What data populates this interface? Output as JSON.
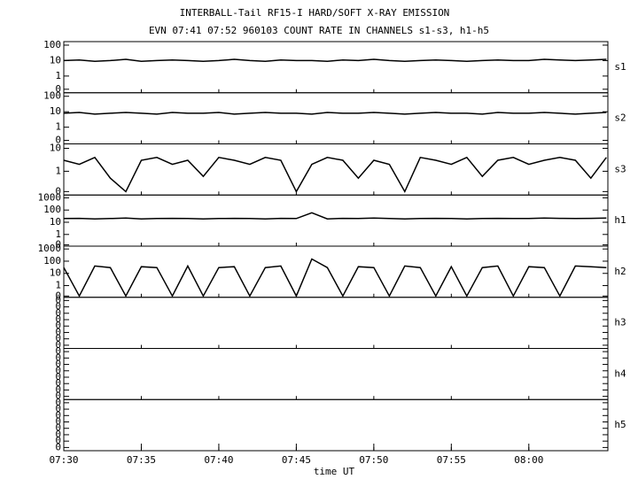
{
  "chart_data": {
    "type": "line",
    "title": "INTERBALL-Tail RF15-I HARD/SOFT X-RAY EMISSION",
    "subtitle": "EVN 07:41 07:52 960103  COUNT RATE IN CHANNELS s1-s3, h1-h5",
    "xlabel": "time UT",
    "color": "#000000",
    "xlim": [
      450,
      485.1
    ],
    "xticks": [
      {
        "value": 450,
        "label": "07:30"
      },
      {
        "value": 455,
        "label": "07:35"
      },
      {
        "value": 460,
        "label": "07:40"
      },
      {
        "value": 465,
        "label": "07:45"
      },
      {
        "value": 470,
        "label": "07:50"
      },
      {
        "value": 475,
        "label": "07:55"
      },
      {
        "value": 480,
        "label": "08:00"
      }
    ],
    "x": [
      450,
      451,
      452,
      453,
      454,
      455,
      456,
      457,
      458,
      459,
      460,
      461,
      462,
      463,
      464,
      465,
      466,
      467,
      468,
      469,
      470,
      471,
      472,
      473,
      474,
      475,
      476,
      477,
      478,
      479,
      480,
      481,
      482,
      483,
      484,
      485
    ],
    "panels": [
      {
        "name": "s1",
        "scale": "log",
        "ylim": [
          0.083,
          169
        ],
        "yticks": [
          100,
          10,
          1,
          {
            "value": 0.14,
            "label": "0"
          }
        ],
        "values": [
          10,
          11,
          9,
          10,
          12,
          9,
          10,
          11,
          10,
          9,
          10,
          12,
          10,
          9,
          11,
          10,
          10,
          9,
          11,
          10,
          12,
          10,
          9,
          10,
          11,
          10,
          9,
          10,
          11,
          10,
          10,
          12,
          11,
          10,
          11,
          12
        ]
      },
      {
        "name": "s2",
        "scale": "log",
        "ylim": [
          0.083,
          169
        ],
        "yticks": [
          100,
          10,
          1,
          {
            "value": 0.14,
            "label": "0"
          }
        ],
        "values": [
          8,
          9,
          7,
          8,
          9,
          8,
          7,
          9,
          8,
          8,
          9,
          7,
          8,
          9,
          8,
          8,
          7,
          9,
          8,
          8,
          9,
          8,
          7,
          8,
          9,
          8,
          8,
          7,
          9,
          8,
          8,
          9,
          8,
          7,
          8,
          9
        ]
      },
      {
        "name": "s3",
        "scale": "log",
        "ylim": [
          0.092,
          15.6
        ],
        "yticks": [
          10,
          1,
          {
            "value": 0.13,
            "label": "0"
          }
        ],
        "values": [
          3,
          2,
          4,
          0.5,
          0.13,
          3,
          4,
          2,
          3,
          0.6,
          4,
          3,
          2,
          4,
          3,
          0.13,
          2,
          4,
          3,
          0.5,
          3,
          2,
          0.13,
          4,
          3,
          2,
          4,
          0.6,
          3,
          4,
          2,
          3,
          4,
          3,
          0.5,
          4
        ]
      },
      {
        "name": "h1",
        "scale": "log",
        "ylim": [
          0.11,
          1700
        ],
        "yticks": [
          1000,
          100,
          10,
          1,
          {
            "value": 0.14,
            "label": "0"
          }
        ],
        "values": [
          20,
          21,
          19,
          20,
          22,
          19,
          20,
          21,
          20,
          19,
          20,
          21,
          20,
          19,
          21,
          20,
          60,
          19,
          21,
          20,
          22,
          20,
          19,
          20,
          21,
          20,
          19,
          20,
          21,
          20,
          20,
          22,
          21,
          20,
          21,
          22
        ]
      },
      {
        "name": "h2",
        "scale": "log",
        "ylim": [
          0.11,
          1700
        ],
        "yticks": [
          1000,
          100,
          10,
          1,
          {
            "value": 0.14,
            "label": "0"
          }
        ],
        "values": [
          30,
          0.14,
          40,
          30,
          0.14,
          35,
          30,
          0.14,
          40,
          0.14,
          30,
          35,
          0.14,
          30,
          40,
          0.14,
          150,
          30,
          0.14,
          35,
          30,
          0.14,
          40,
          30,
          0.14,
          35,
          0.14,
          30,
          40,
          0.14,
          35,
          30,
          0.14,
          40,
          35,
          30
        ]
      },
      {
        "name": "h3",
        "scale": "linear",
        "ylim": [
          -0.05,
          0.75
        ],
        "yticks": [
          {
            "value": 0.7,
            "label": "0"
          },
          {
            "value": 0.6,
            "label": "0"
          },
          {
            "value": 0.5,
            "label": "0"
          },
          {
            "value": 0.4,
            "label": "0"
          },
          {
            "value": 0.3,
            "label": "0"
          },
          {
            "value": 0.2,
            "label": "0"
          },
          {
            "value": 0.1,
            "label": "0"
          },
          {
            "value": 0,
            "label": "0"
          }
        ]
      },
      {
        "name": "h4",
        "scale": "linear",
        "ylim": [
          -0.05,
          0.75
        ],
        "yticks": [
          {
            "value": 0.7,
            "label": "0"
          },
          {
            "value": 0.6,
            "label": "0"
          },
          {
            "value": 0.5,
            "label": "0"
          },
          {
            "value": 0.4,
            "label": "0"
          },
          {
            "value": 0.3,
            "label": "0"
          },
          {
            "value": 0.2,
            "label": "0"
          },
          {
            "value": 0.1,
            "label": "0"
          },
          {
            "value": 0,
            "label": "0"
          }
        ]
      },
      {
        "name": "h5",
        "scale": "linear",
        "ylim": [
          -0.05,
          0.75
        ],
        "yticks": [
          {
            "value": 0.7,
            "label": "0"
          },
          {
            "value": 0.6,
            "label": "0"
          },
          {
            "value": 0.5,
            "label": "0"
          },
          {
            "value": 0.4,
            "label": "0"
          },
          {
            "value": 0.3,
            "label": "0"
          },
          {
            "value": 0.2,
            "label": "0"
          },
          {
            "value": 0.1,
            "label": "0"
          },
          {
            "value": 0,
            "label": "0"
          }
        ]
      }
    ]
  }
}
